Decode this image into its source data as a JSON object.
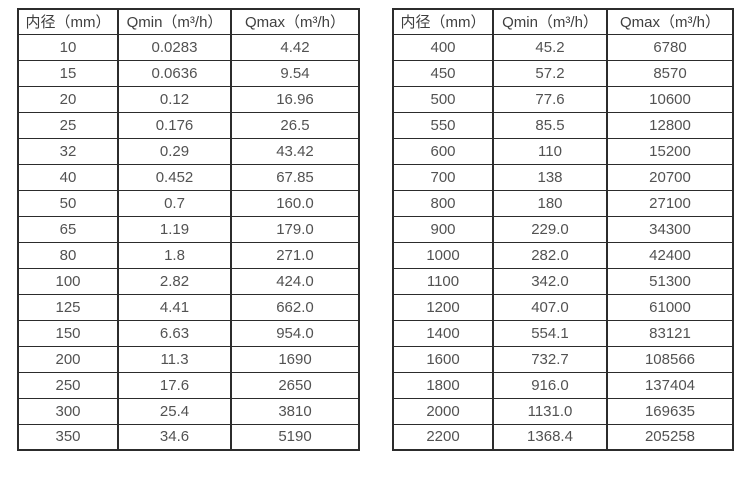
{
  "colors": {
    "border": "#2c2c2c",
    "header_text": "#3f3f3f",
    "cell_text": "#525252",
    "background": "#ffffff"
  },
  "tables": [
    {
      "name": "small-diameter-flow-table",
      "headers": [
        "内径（mm）",
        "Qmin（m³/h）",
        "Qmax（m³/h）"
      ],
      "rows": [
        [
          "10",
          "0.0283",
          "4.42"
        ],
        [
          "15",
          "0.0636",
          "9.54"
        ],
        [
          "20",
          "0.12",
          "16.96"
        ],
        [
          "25",
          "0.176",
          "26.5"
        ],
        [
          "32",
          "0.29",
          "43.42"
        ],
        [
          "40",
          "0.452",
          "67.85"
        ],
        [
          "50",
          "0.7",
          "160.0"
        ],
        [
          "65",
          "1.19",
          "179.0"
        ],
        [
          "80",
          "1.8",
          "271.0"
        ],
        [
          "100",
          "2.82",
          "424.0"
        ],
        [
          "125",
          "4.41",
          "662.0"
        ],
        [
          "150",
          "6.63",
          "954.0"
        ],
        [
          "200",
          "11.3",
          "1690"
        ],
        [
          "250",
          "17.6",
          "2650"
        ],
        [
          "300",
          "25.4",
          "3810"
        ],
        [
          "350",
          "34.6",
          "5190"
        ]
      ]
    },
    {
      "name": "large-diameter-flow-table",
      "headers": [
        "内径（mm）",
        "Qmin（m³/h）",
        "Qmax（m³/h）"
      ],
      "rows": [
        [
          "400",
          "45.2",
          "6780"
        ],
        [
          "450",
          "57.2",
          "8570"
        ],
        [
          "500",
          "77.6",
          "10600"
        ],
        [
          "550",
          "85.5",
          "12800"
        ],
        [
          "600",
          "110",
          "15200"
        ],
        [
          "700",
          "138",
          "20700"
        ],
        [
          "800",
          "180",
          "27100"
        ],
        [
          "900",
          "229.0",
          "34300"
        ],
        [
          "1000",
          "282.0",
          "42400"
        ],
        [
          "1100",
          "342.0",
          "51300"
        ],
        [
          "1200",
          "407.0",
          "61000"
        ],
        [
          "1400",
          "554.1",
          "83121"
        ],
        [
          "1600",
          "732.7",
          "108566"
        ],
        [
          "1800",
          "916.0",
          "137404"
        ],
        [
          "2000",
          "1131.0",
          "169635"
        ],
        [
          "2200",
          "1368.4",
          "205258"
        ]
      ]
    }
  ]
}
